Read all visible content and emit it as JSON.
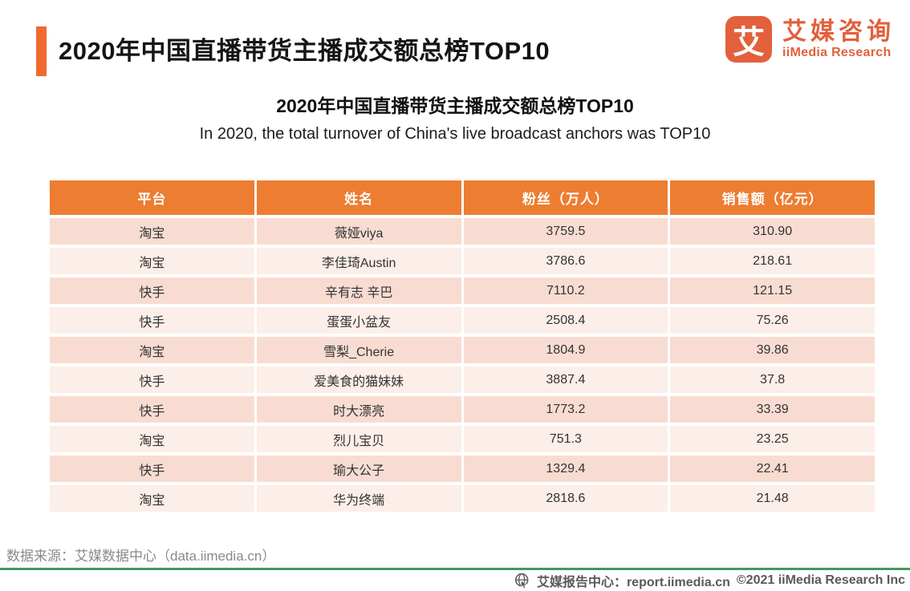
{
  "header": {
    "title": "2020年中国直播带货主播成交额总榜TOP10",
    "logo": {
      "glyph": "艾",
      "name_cn": "艾媒咨询",
      "name_en": "iiMedia Research"
    }
  },
  "subtitle_cn": "2020年中国直播带货主播成交额总榜TOP10",
  "subtitle_en": "In 2020, the total turnover of China's live broadcast anchors was TOP10",
  "chart_data": {
    "type": "table",
    "title": "2020年中国直播带货主播成交额总榜TOP10",
    "columns": [
      "平台",
      "姓名",
      "粉丝（万人）",
      "销售额（亿元）"
    ],
    "rows": [
      [
        "淘宝",
        "薇娅viya",
        "3759.5",
        "310.90"
      ],
      [
        "淘宝",
        "李佳琦Austin",
        "3786.6",
        "218.61"
      ],
      [
        "快手",
        "辛有志 辛巴",
        "7110.2",
        "121.15"
      ],
      [
        "快手",
        "蛋蛋小盆友",
        "2508.4",
        "75.26"
      ],
      [
        "淘宝",
        "雪梨_Cherie",
        "1804.9",
        "39.86"
      ],
      [
        "快手",
        "爱美食的猫妹妹",
        "3887.4",
        "37.8"
      ],
      [
        "快手",
        "时大漂亮",
        "1773.2",
        "33.39"
      ],
      [
        "淘宝",
        "烈儿宝贝",
        "751.3",
        "23.25"
      ],
      [
        "快手",
        "瑜大公子",
        "1329.4",
        "22.41"
      ],
      [
        "淘宝",
        "华为终端",
        "2818.6",
        "21.48"
      ]
    ]
  },
  "footer": {
    "source": "数据来源：艾媒数据中心（data.iimedia.cn）",
    "report_center": "艾媒报告中心：report.iimedia.cn",
    "copyright": "©2021  iiMedia Research Inc"
  },
  "colors": {
    "table_header_orange": "#ED7D31",
    "title_bar_orange": "#EF6A2F",
    "brand_orange": "#E2603C",
    "row_dark": "#F8DCD2",
    "row_light": "#FCEEE8",
    "green_line": "#44985A",
    "source_gray": "#8A8A8A",
    "bottom_text_gray": "#595959"
  }
}
